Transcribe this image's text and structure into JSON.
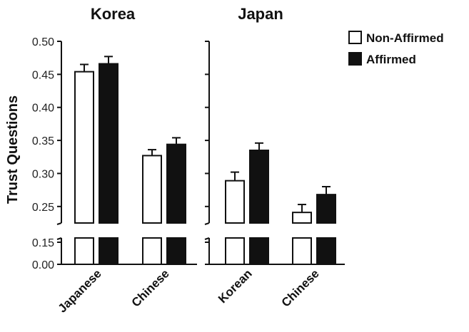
{
  "chart_data": {
    "type": "bar",
    "ylabel": "Trust Questions",
    "y_ticks": [
      "0.00",
      "0.15",
      "0.25",
      "0.30",
      "0.35",
      "0.40",
      "0.45",
      "0.50"
    ],
    "axis_break": "between 0.15 and 0.225",
    "legend": {
      "placement": "top-right",
      "entries": [
        {
          "name": "Non-Affirmed",
          "color": "#ffffff"
        },
        {
          "name": "Affirmed",
          "color": "#111111"
        }
      ]
    },
    "series_names": [
      "Non-Affirmed",
      "Affirmed"
    ],
    "panels": [
      {
        "title": "Korea",
        "categories": [
          "Japanese",
          "Chinese"
        ],
        "series": [
          {
            "name": "Non-Affirmed",
            "values": [
              0.454,
              0.327
            ],
            "errors": [
              0.011,
              0.009
            ]
          },
          {
            "name": "Affirmed",
            "values": [
              0.466,
              0.344
            ],
            "errors": [
              0.011,
              0.01
            ]
          }
        ]
      },
      {
        "title": "Japan",
        "categories": [
          "Korean",
          "Chinese"
        ],
        "series": [
          {
            "name": "Non-Affirmed",
            "values": [
              0.289,
              0.241
            ],
            "errors": [
              0.013,
              0.012
            ]
          },
          {
            "name": "Affirmed",
            "values": [
              0.335,
              0.268
            ],
            "errors": [
              0.011,
              0.012
            ]
          }
        ]
      }
    ],
    "colors": {
      "non_affirmed_fill": "#ffffff",
      "affirmed_fill": "#111111",
      "stroke": "#111111"
    }
  }
}
